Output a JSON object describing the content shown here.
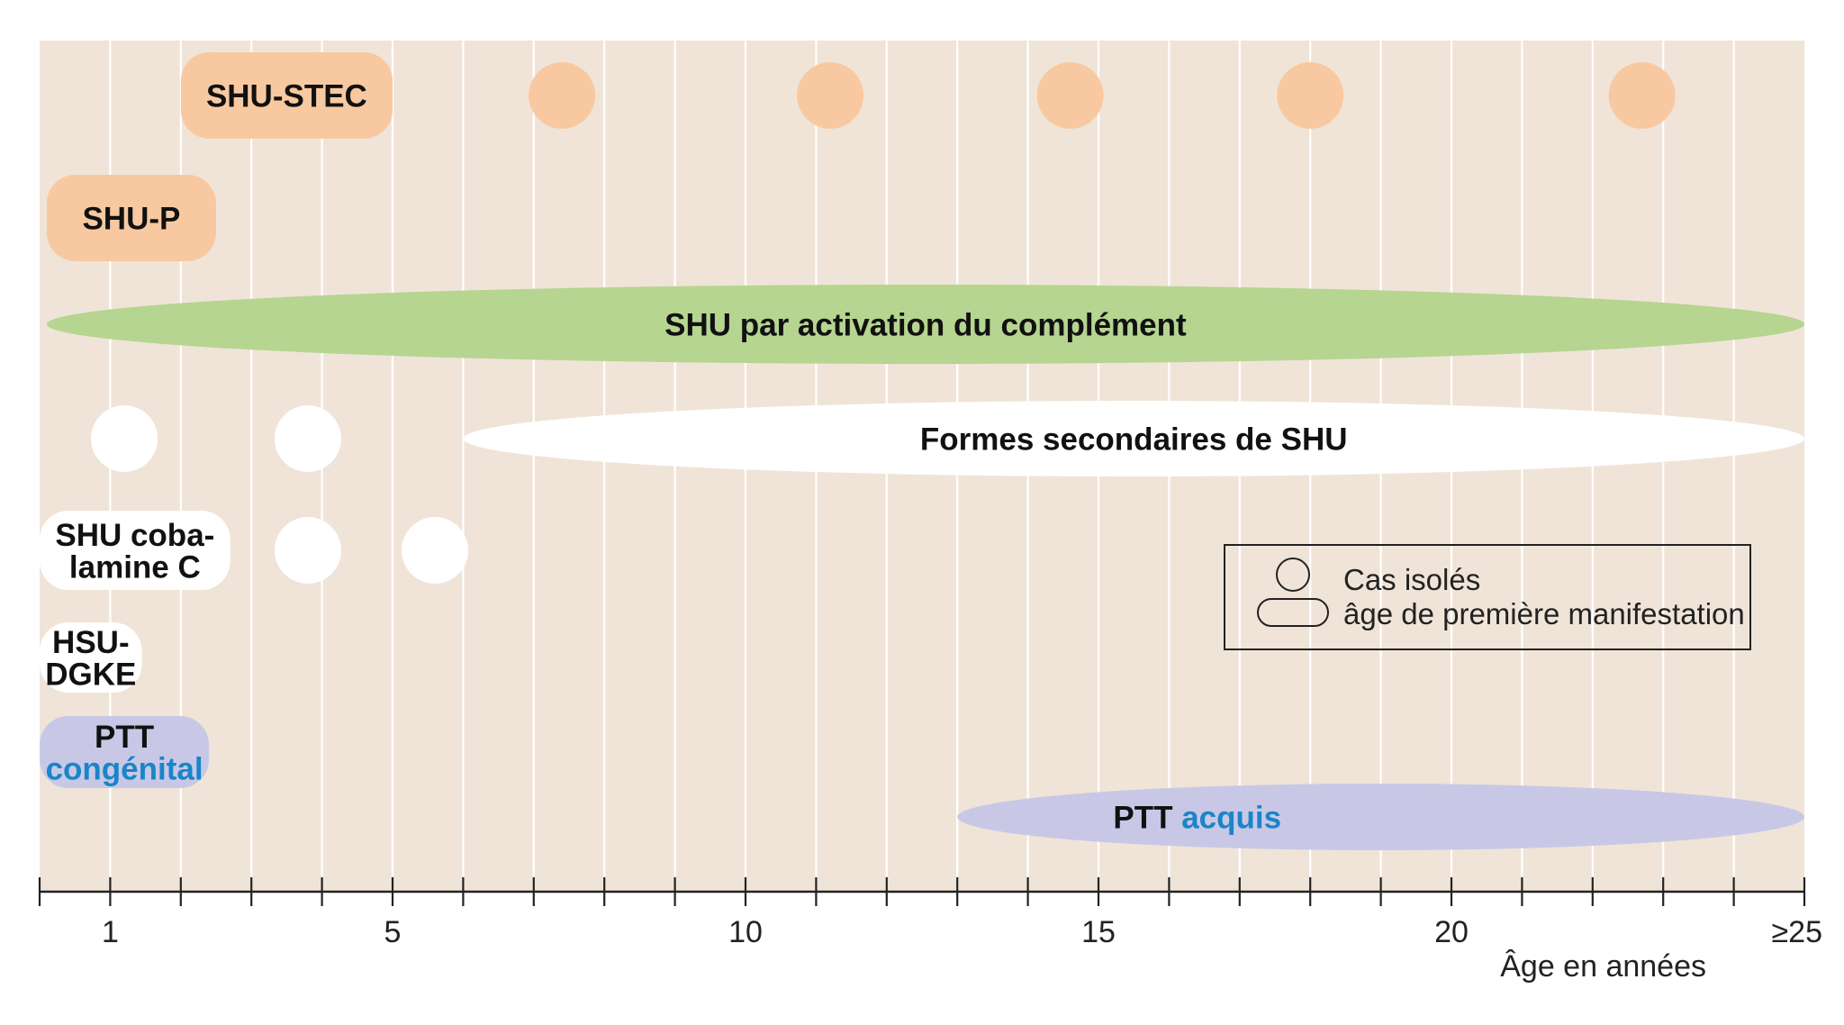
{
  "chart_data": {
    "type": "timeline",
    "x_axis": {
      "min": 0,
      "max": 25,
      "tick_labels": [
        {
          "value": 1,
          "label": "1"
        },
        {
          "value": 5,
          "label": "5"
        },
        {
          "value": 10,
          "label": "10"
        },
        {
          "value": 15,
          "label": "15"
        },
        {
          "value": 20,
          "label": "20"
        },
        {
          "value": 25,
          "label": "≥25"
        }
      ],
      "minor_ticks": [
        0,
        1,
        2,
        3,
        4,
        5,
        6,
        7,
        8,
        9,
        10,
        11,
        12,
        13,
        14,
        15,
        16,
        17,
        18,
        19,
        20,
        21,
        22,
        23,
        24,
        25
      ],
      "label": "Âge en années"
    },
    "rows": [
      {
        "id": "shu-stec",
        "name": "SHU-STEC",
        "color": "#f8c9a0",
        "text_color": "#111111",
        "bands": [
          {
            "from": 2.0,
            "to": 5.0
          }
        ],
        "label_in_band": 0,
        "isolated_cases": [
          7.4,
          11.2,
          14.6,
          18.0,
          22.7
        ]
      },
      {
        "id": "shu-p",
        "name": "SHU-P",
        "color": "#f8c9a0",
        "text_color": "#111111",
        "bands": [
          {
            "from": 0.1,
            "to": 2.5
          }
        ],
        "label_in_band": 0,
        "isolated_cases": []
      },
      {
        "id": "shu-complement",
        "name": "SHU par activation du complément",
        "color": "#b5d590",
        "text_color": "#111111",
        "bands": [
          {
            "from": 0.1,
            "to": 25
          }
        ],
        "label_in_band": 0,
        "isolated_cases": []
      },
      {
        "id": "shu-secondaires",
        "name": "Formes secondaires de SHU",
        "color": "#ffffff",
        "text_color": "#111111",
        "bands": [
          {
            "from": 6.0,
            "to": 25
          }
        ],
        "label_in_band": 0,
        "isolated_cases": [
          1.2,
          3.8
        ]
      },
      {
        "id": "shu-cobalamine",
        "name": "SHU coba- lamine C",
        "name_lines": [
          "SHU coba-",
          "lamine C"
        ],
        "color": "#ffffff",
        "text_color": "#111111",
        "bands": [
          {
            "from": 0.0,
            "to": 2.7
          }
        ],
        "label_in_band": 0,
        "isolated_cases": [
          3.8,
          5.6
        ]
      },
      {
        "id": "hsu-dgke",
        "name": "HSU- DGKE",
        "name_lines": [
          "HSU-",
          "DGKE"
        ],
        "color": "#ffffff",
        "text_color": "#111111",
        "bands": [
          {
            "from": 0.0,
            "to": 1.45
          }
        ],
        "label_in_band": 0,
        "isolated_cases": []
      },
      {
        "id": "ptt-congenital",
        "name": "PTT congénital",
        "name_lines": [
          "PTT",
          "congénital"
        ],
        "color": "#c8c8e6",
        "text_color": "#111111",
        "accent_word": "congénital",
        "bands": [
          {
            "from": 0.0,
            "to": 2.4
          }
        ],
        "label_in_band": 0,
        "isolated_cases": []
      },
      {
        "id": "ptt-acquis",
        "name": "PTT acquis",
        "color": "#c8c8e6",
        "text_color": "#111111",
        "accent_word": "acquis",
        "bands": [
          {
            "from": 13.0,
            "to": 25
          }
        ],
        "label_in_band": 0,
        "isolated_cases": []
      }
    ],
    "legend": {
      "placement": "right",
      "items": [
        {
          "symbol": "circle",
          "label": "Cas isolés"
        },
        {
          "symbol": "pill",
          "label": "âge de première manifestation"
        }
      ]
    },
    "grid": true,
    "colors": {
      "background": "#f0e4d8",
      "gridline": "#ffffff",
      "axis": "#222222",
      "accent_text": "#1a85c8"
    }
  }
}
